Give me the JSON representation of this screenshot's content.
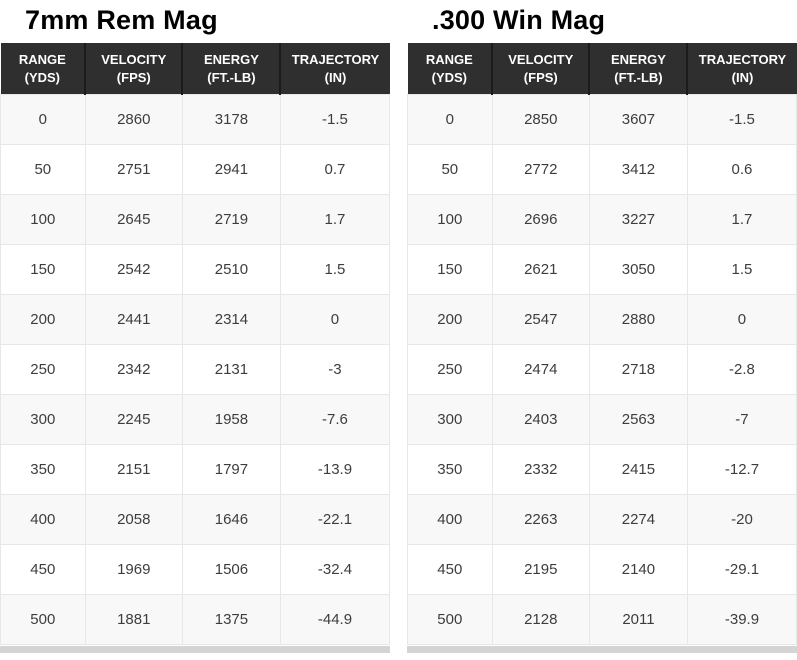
{
  "chart_data": [
    {
      "type": "table",
      "title": "7mm Rem Mag",
      "columns": [
        "RANGE (YDS)",
        "VELOCITY (FPS)",
        "ENERGY (FT.-LB)",
        "TRAJECTORY (IN)"
      ],
      "rows": [
        [
          "0",
          "2860",
          "3178",
          "-1.5"
        ],
        [
          "50",
          "2751",
          "2941",
          "0.7"
        ],
        [
          "100",
          "2645",
          "2719",
          "1.7"
        ],
        [
          "150",
          "2542",
          "2510",
          "1.5"
        ],
        [
          "200",
          "2441",
          "2314",
          "0"
        ],
        [
          "250",
          "2342",
          "2131",
          "-3"
        ],
        [
          "300",
          "2245",
          "1958",
          "-7.6"
        ],
        [
          "350",
          "2151",
          "1797",
          "-13.9"
        ],
        [
          "400",
          "2058",
          "1646",
          "-22.1"
        ],
        [
          "450",
          "1969",
          "1506",
          "-32.4"
        ],
        [
          "500",
          "1881",
          "1375",
          "-44.9"
        ]
      ]
    },
    {
      "type": "table",
      "title": ".300 Win Mag",
      "columns": [
        "RANGE (YDS)",
        "VELOCITY (FPS)",
        "ENERGY (FT.-LB)",
        "TRAJECTORY (IN)"
      ],
      "rows": [
        [
          "0",
          "2850",
          "3607",
          "-1.5"
        ],
        [
          "50",
          "2772",
          "3412",
          "0.6"
        ],
        [
          "100",
          "2696",
          "3227",
          "1.7"
        ],
        [
          "150",
          "2621",
          "3050",
          "1.5"
        ],
        [
          "200",
          "2547",
          "2880",
          "0"
        ],
        [
          "250",
          "2474",
          "2718",
          "-2.8"
        ],
        [
          "300",
          "2403",
          "2563",
          "-7"
        ],
        [
          "350",
          "2332",
          "2415",
          "-12.7"
        ],
        [
          "400",
          "2263",
          "2274",
          "-20"
        ],
        [
          "450",
          "2195",
          "2140",
          "-29.1"
        ],
        [
          "500",
          "2128",
          "2011",
          "-39.9"
        ]
      ]
    }
  ],
  "colors": {
    "header_bg": "#2f2f2f",
    "header_separator": "#1b1b1b",
    "header_text": "#ffffff",
    "row_stripe": "#f8f8f8",
    "row_white": "#ffffff",
    "cell_border": "#e7e7e7",
    "cell_text": "#3d3d3d",
    "title_text": "#000000",
    "scrollbar_track": "#d4d4d4"
  }
}
